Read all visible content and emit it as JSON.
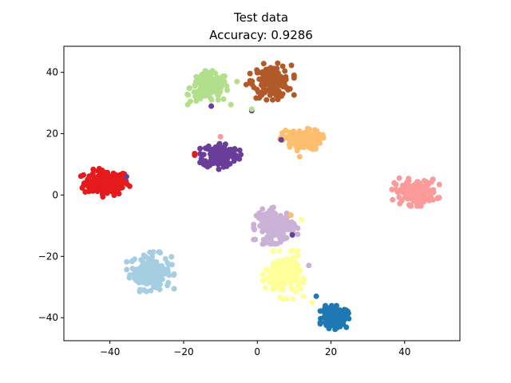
{
  "chart_data": {
    "type": "scatter",
    "title": "Test data",
    "subtitle": "Accuracy: 0.9286",
    "xlabel": "",
    "ylabel": "",
    "xlim": [
      -52.5,
      55
    ],
    "ylim": [
      -47.5,
      48.5
    ],
    "xticks": [
      -40,
      -20,
      0,
      20,
      40
    ],
    "yticks": [
      -40,
      -20,
      0,
      20,
      40
    ],
    "xtick_labels": [
      "−40",
      "−20",
      "0",
      "20",
      "40"
    ],
    "ytick_labels": [
      "−40",
      "−20",
      "0",
      "20",
      "40"
    ],
    "grid": false,
    "legend": "none",
    "clusters": [
      {
        "color": "#e41a1c",
        "center": [
          -41,
          4
        ],
        "spread": [
          3.0,
          2.0
        ],
        "count": 160
      },
      {
        "color": "#a6cee3",
        "center": [
          -29,
          -25
        ],
        "spread": [
          2.8,
          2.8
        ],
        "count": 150
      },
      {
        "color": "#b2df8a",
        "center": [
          -13,
          35
        ],
        "spread": [
          2.6,
          2.4
        ],
        "count": 140
      },
      {
        "color": "#b15928",
        "center": [
          4,
          37
        ],
        "spread": [
          2.6,
          2.6
        ],
        "count": 150
      },
      {
        "color": "#6a3d9a",
        "center": [
          -10,
          13
        ],
        "spread": [
          2.4,
          2.0
        ],
        "count": 140
      },
      {
        "color": "#fdbf6f",
        "center": [
          12,
          18
        ],
        "spread": [
          2.6,
          1.6
        ],
        "count": 130
      },
      {
        "color": "#fb9a99",
        "center": [
          43,
          1
        ],
        "spread": [
          2.8,
          2.0
        ],
        "count": 150
      },
      {
        "color": "#cab2d6",
        "center": [
          5,
          -10
        ],
        "spread": [
          2.6,
          2.6
        ],
        "count": 150
      },
      {
        "color": "#ffff99",
        "center": [
          7,
          -26
        ],
        "spread": [
          2.4,
          3.4
        ],
        "count": 160
      },
      {
        "color": "#1f78b4",
        "center": [
          21,
          -40
        ],
        "spread": [
          1.7,
          1.7
        ],
        "count": 140
      }
    ],
    "outliers": [
      {
        "x": -35.5,
        "y": 6,
        "color": "#6a3d9a"
      },
      {
        "x": -17,
        "y": 13,
        "color": "#e41a1c"
      },
      {
        "x": -17,
        "y": 13.5,
        "color": "#e41a1c"
      },
      {
        "x": -12.5,
        "y": 29,
        "color": "#6a3d9a"
      },
      {
        "x": -5.5,
        "y": 37,
        "color": "#b2df8a"
      },
      {
        "x": -3,
        "y": 36,
        "color": "#b15928"
      },
      {
        "x": -1.5,
        "y": 27.5,
        "color": "#6a3d9a"
      },
      {
        "x": -1.5,
        "y": 28,
        "color": "#b2df8a"
      },
      {
        "x": -10,
        "y": 19,
        "color": "#fb9a99"
      },
      {
        "x": 6.5,
        "y": 18,
        "color": "#6a3d9a"
      },
      {
        "x": 11.5,
        "y": 12.5,
        "color": "#fdbf6f"
      },
      {
        "x": 9,
        "y": -6.5,
        "color": "#fdbf6f"
      },
      {
        "x": 12,
        "y": -8,
        "color": "#ffff99"
      },
      {
        "x": 9.5,
        "y": -13,
        "color": "#6a3d9a"
      },
      {
        "x": 14,
        "y": -23,
        "color": "#cab2d6"
      },
      {
        "x": 12.5,
        "y": -33,
        "color": "#ffff99"
      },
      {
        "x": 16,
        "y": -33,
        "color": "#1f78b4"
      },
      {
        "x": 15,
        "y": -35,
        "color": "#ffff99"
      }
    ]
  },
  "colors": {
    "axis": "#000000",
    "background": "#ffffff"
  }
}
